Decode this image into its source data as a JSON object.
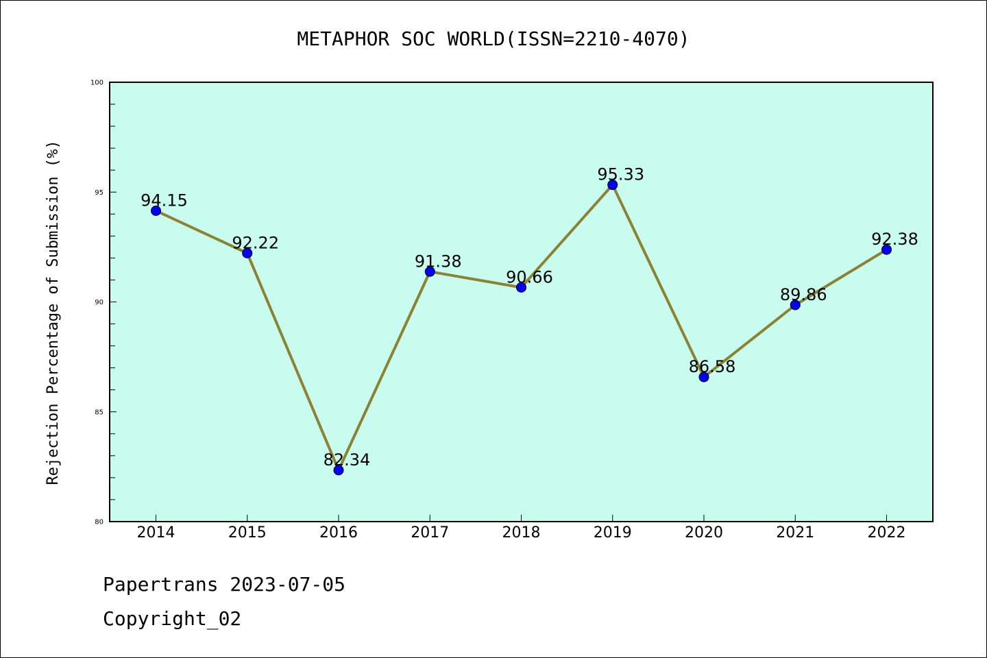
{
  "chart_data": {
    "type": "line",
    "title": "METAPHOR SOC WORLD(ISSN=2210-4070)",
    "xlabel": "",
    "ylabel": "Rejection Percentage of Submission (%)",
    "categories": [
      "2014",
      "2015",
      "2016",
      "2017",
      "2018",
      "2019",
      "2020",
      "2021",
      "2022"
    ],
    "values": [
      94.15,
      92.22,
      82.34,
      91.38,
      90.66,
      95.33,
      86.58,
      89.86,
      92.38
    ],
    "data_labels": [
      "94.15",
      "92.22",
      "82.34",
      "91.38",
      "90.66",
      "95.33",
      "86.58",
      "89.86",
      "92.38"
    ],
    "ylim": [
      80,
      100
    ],
    "yticks": [
      "80",
      "85",
      "90",
      "95",
      "100"
    ],
    "grid": false,
    "colors": {
      "plot_background": "#c8fcee",
      "line": "#8c8232",
      "marker": "#0000ff"
    }
  },
  "footer": {
    "line1": "Papertrans 2023-07-05",
    "line2": "Copyright_02"
  }
}
